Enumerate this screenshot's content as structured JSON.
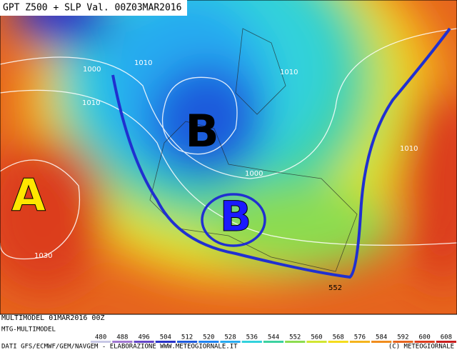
{
  "header": {
    "title": "GPT Z500 + SLP Val. 00Z03MAR2016"
  },
  "map": {
    "isobar_labels": [
      "1000",
      "1010",
      "1010",
      "1010",
      "1010",
      "1000",
      "1030",
      "552"
    ],
    "centers": [
      {
        "label": "B",
        "color": "#000000"
      },
      {
        "label": "B",
        "color": "#1a1aff"
      },
      {
        "label": "A",
        "color": "#ffe600"
      }
    ]
  },
  "footer": {
    "run": "MULTIMODEL 01MAR2016 00Z",
    "model": "MTG-MULTIMODEL",
    "credits": "DATI GFS/ECMWF/GEM/NAVGEM - ELABORAZIONE WWW.METEOGIORNALE.IT",
    "copyright": "(C) METEOGIORNALE"
  },
  "legend": [
    {
      "value": 480,
      "color": "#c8c8e6"
    },
    {
      "value": 488,
      "color": "#a078d2"
    },
    {
      "value": 496,
      "color": "#6446c8"
    },
    {
      "value": 504,
      "color": "#2832c8"
    },
    {
      "value": 512,
      "color": "#1e5adc"
    },
    {
      "value": 520,
      "color": "#1e82f0"
    },
    {
      "value": 528,
      "color": "#28aaf0"
    },
    {
      "value": 536,
      "color": "#32d2dc"
    },
    {
      "value": 544,
      "color": "#3cd2a0"
    },
    {
      "value": 552,
      "color": "#8cdc50"
    },
    {
      "value": 560,
      "color": "#d2e632"
    },
    {
      "value": 568,
      "color": "#f5dc1e"
    },
    {
      "value": 576,
      "color": "#f5b41e"
    },
    {
      "value": 584,
      "color": "#f08c1e"
    },
    {
      "value": 592,
      "color": "#e6641e"
    },
    {
      "value": 600,
      "color": "#dc3c1e"
    },
    {
      "value": 608,
      "color": "#c81e1e"
    }
  ]
}
